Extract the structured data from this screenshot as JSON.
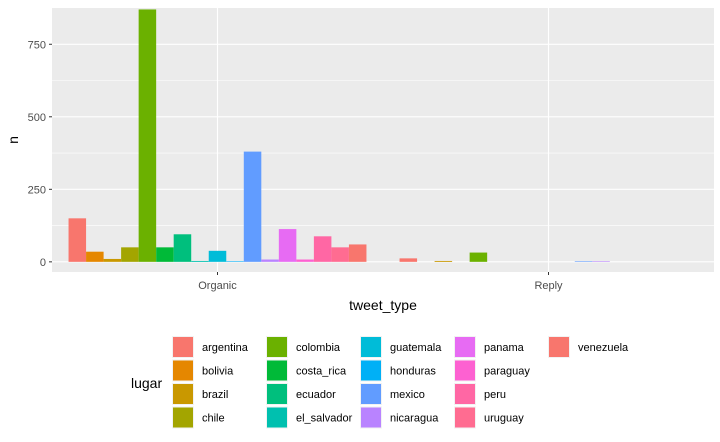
{
  "chart_data": {
    "type": "bar",
    "categories": [
      "Organic",
      "Reply"
    ],
    "xlabel": "tweet_type",
    "ylabel": "n",
    "ylim": [
      -35,
      875
    ],
    "yticks": [
      0,
      250,
      500,
      750
    ],
    "grid": true,
    "legend": {
      "title": "lugar",
      "placement": "bottom"
    },
    "series": [
      {
        "name": "argentina",
        "color": "#F8766D",
        "values": [
          150,
          12
        ]
      },
      {
        "name": "bolivia",
        "color": "#E58700",
        "values": [
          35,
          0
        ]
      },
      {
        "name": "brazil",
        "color": "#C99800",
        "values": [
          10,
          3
        ]
      },
      {
        "name": "chile",
        "color": "#A3A500",
        "values": [
          50,
          0
        ]
      },
      {
        "name": "colombia",
        "color": "#6BB100",
        "values": [
          870,
          32
        ]
      },
      {
        "name": "costa_rica",
        "color": "#00BA38",
        "values": [
          50,
          0
        ]
      },
      {
        "name": "ecuador",
        "color": "#00BF7D",
        "values": [
          95,
          0
        ]
      },
      {
        "name": "el_salvador",
        "color": "#00C0AF",
        "values": [
          3,
          0
        ]
      },
      {
        "name": "guatemala",
        "color": "#00BCD8",
        "values": [
          38,
          0
        ]
      },
      {
        "name": "honduras",
        "color": "#00B0F6",
        "values": [
          2,
          0
        ]
      },
      {
        "name": "mexico",
        "color": "#619CFF",
        "values": [
          380,
          2
        ]
      },
      {
        "name": "nicaragua",
        "color": "#B983FF",
        "values": [
          8,
          2
        ]
      },
      {
        "name": "panama",
        "color": "#E76BF3",
        "values": [
          113,
          0
        ]
      },
      {
        "name": "paraguay",
        "color": "#FD61D1",
        "values": [
          8,
          0
        ]
      },
      {
        "name": "peru",
        "color": "#FF67A4",
        "values": [
          88,
          0
        ]
      },
      {
        "name": "uruguay",
        "color": "#FF6C91",
        "values": [
          50,
          0
        ]
      },
      {
        "name": "venezuela",
        "color": "#F8766D",
        "values": [
          60,
          0
        ]
      }
    ]
  }
}
